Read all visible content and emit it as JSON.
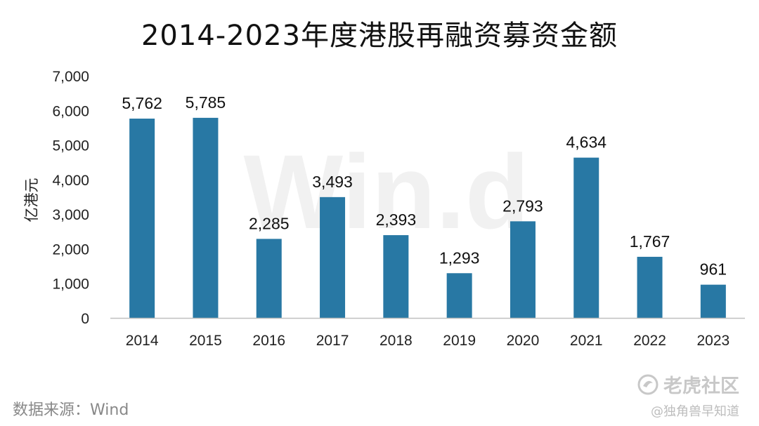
{
  "title": "2014-2023年度港股再融资募资金额",
  "source": "数据来源：Wind",
  "watermark": "Win.d",
  "brand": {
    "logo_text": "老虎社区",
    "logo_icon": "tiger-swirl-icon",
    "handle": "@独角兽早知道"
  },
  "colors": {
    "bar": "#2878a4",
    "axis": "#bfbfbf",
    "watermark": "#f1f1f1"
  },
  "chart_data": {
    "type": "bar",
    "title": "2014-2023年度港股再融资募资金额",
    "xlabel": "",
    "ylabel": "亿港元",
    "categories": [
      "2014",
      "2015",
      "2016",
      "2017",
      "2018",
      "2019",
      "2020",
      "2021",
      "2022",
      "2023"
    ],
    "values": [
      5762,
      5785,
      2285,
      3493,
      2393,
      1293,
      2793,
      4634,
      1767,
      961
    ],
    "value_labels": [
      "5,762",
      "5,785",
      "2,285",
      "3,493",
      "2,393",
      "1,293",
      "2,793",
      "4,634",
      "1,767",
      "961"
    ],
    "ylim": [
      0,
      7000
    ],
    "y_ticks": [
      0,
      1000,
      2000,
      3000,
      4000,
      5000,
      6000,
      7000
    ],
    "y_tick_labels": [
      "0",
      "1,000",
      "2,000",
      "3,000",
      "4,000",
      "5,000",
      "6,000",
      "7,000"
    ],
    "grid": false,
    "legend": "none"
  }
}
